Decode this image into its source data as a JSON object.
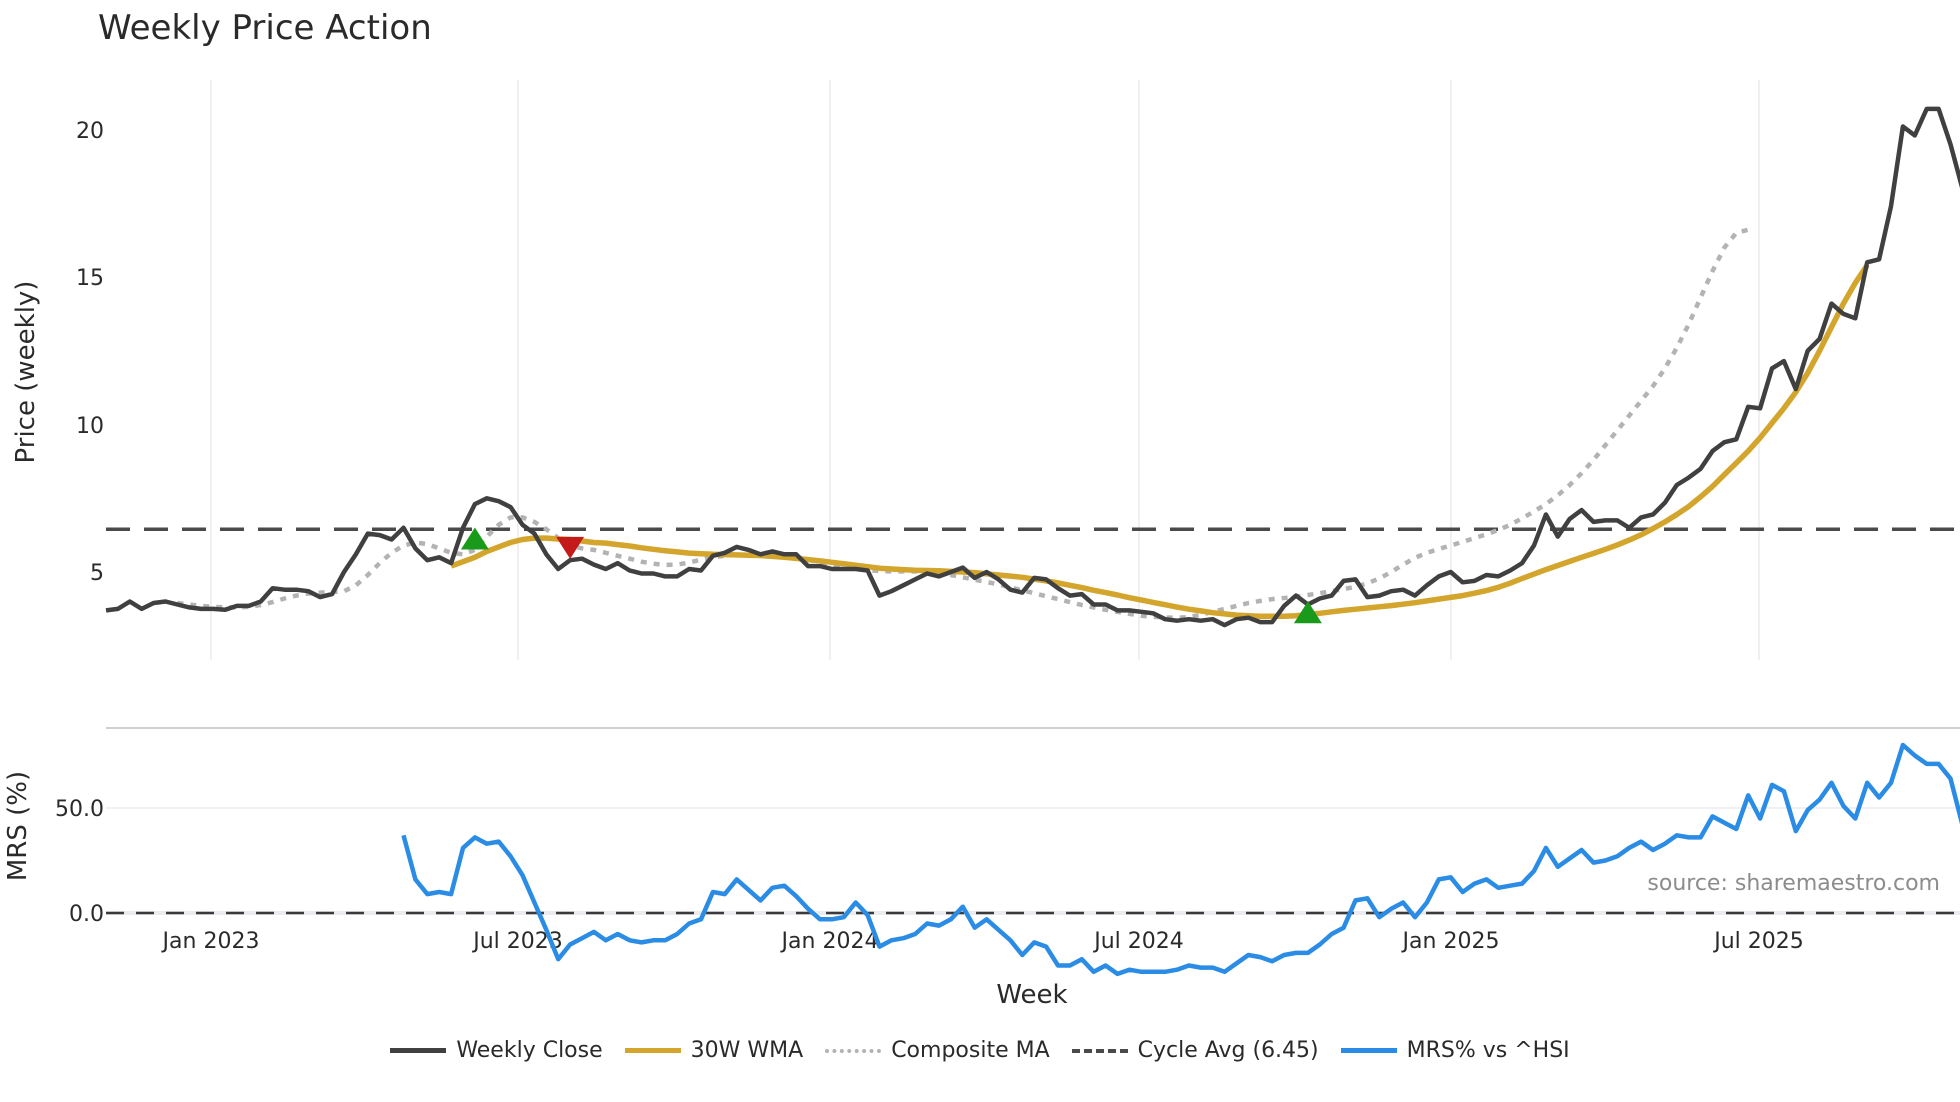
{
  "title": "Weekly Price Action",
  "chart_data": [
    {
      "type": "line",
      "title": "Weekly Price Action",
      "xlabel": "Week",
      "ylabel": "Price (weekly)",
      "ylim": [
        2.0,
        21.5
      ],
      "yticks": [
        5,
        10,
        15,
        20
      ],
      "xticks": [
        "Jan 2023",
        "Jul 2023",
        "Jan 2024",
        "Jul 2024",
        "Jan 2025",
        "Jul 2025"
      ],
      "grid": true,
      "cycle_avg": 6.45,
      "x_start": "2022-10-31",
      "x_step": "1 week",
      "series": [
        {
          "name": "Weekly Close",
          "color": "#404040",
          "style": "solid",
          "values": [
            3.7,
            3.75,
            4.0,
            3.75,
            3.95,
            4.0,
            3.9,
            3.8,
            3.75,
            3.75,
            3.72,
            3.85,
            3.85,
            4.0,
            4.45,
            4.4,
            4.4,
            4.35,
            4.15,
            4.25,
            5.0,
            5.6,
            6.3,
            6.25,
            6.1,
            6.5,
            5.8,
            5.4,
            5.5,
            5.3,
            6.5,
            7.3,
            7.5,
            7.4,
            7.2,
            6.6,
            6.3,
            5.6,
            5.1,
            5.4,
            5.45,
            5.25,
            5.1,
            5.3,
            5.05,
            4.95,
            4.95,
            4.85,
            4.85,
            5.1,
            5.05,
            5.55,
            5.65,
            5.85,
            5.75,
            5.6,
            5.7,
            5.6,
            5.6,
            5.2,
            5.2,
            5.1,
            5.1,
            5.1,
            5.05,
            4.2,
            4.35,
            4.55,
            4.75,
            4.95,
            4.85,
            5.0,
            5.15,
            4.8,
            5.0,
            4.75,
            4.4,
            4.3,
            4.8,
            4.75,
            4.45,
            4.2,
            4.25,
            3.9,
            3.9,
            3.7,
            3.7,
            3.65,
            3.6,
            3.4,
            3.35,
            3.4,
            3.35,
            3.4,
            3.2,
            3.4,
            3.45,
            3.3,
            3.3,
            3.85,
            4.2,
            3.9,
            4.1,
            4.2,
            4.7,
            4.75,
            4.15,
            4.2,
            4.35,
            4.4,
            4.2,
            4.55,
            4.85,
            5.0,
            4.65,
            4.7,
            4.9,
            4.85,
            5.05,
            5.3,
            5.9,
            6.95,
            6.2,
            6.8,
            7.1,
            6.7,
            6.75,
            6.75,
            6.5,
            6.85,
            6.95,
            7.35,
            7.95,
            8.2,
            8.5,
            9.1,
            9.4,
            9.5,
            10.6,
            10.55,
            11.9,
            12.15,
            11.2,
            12.5,
            12.9,
            14.1,
            13.75,
            13.6,
            15.5,
            15.6,
            17.4,
            20.1,
            19.8,
            20.7,
            20.7,
            19.5,
            18.0,
            17.7
          ]
        },
        {
          "name": "30W WMA",
          "color": "#d4a52c",
          "style": "solid",
          "start_index": 29,
          "values": [
            5.2,
            5.35,
            5.5,
            5.7,
            5.85,
            6.0,
            6.1,
            6.15,
            6.15,
            6.12,
            6.1,
            6.05,
            6.0,
            5.98,
            5.93,
            5.88,
            5.82,
            5.77,
            5.72,
            5.68,
            5.64,
            5.62,
            5.6,
            5.59,
            5.58,
            5.57,
            5.56,
            5.53,
            5.5,
            5.46,
            5.42,
            5.38,
            5.33,
            5.28,
            5.23,
            5.18,
            5.13,
            5.1,
            5.08,
            5.06,
            5.05,
            5.04,
            5.02,
            5.0,
            4.98,
            4.94,
            4.9,
            4.86,
            4.82,
            4.76,
            4.7,
            4.63,
            4.55,
            4.47,
            4.38,
            4.3,
            4.22,
            4.13,
            4.05,
            3.97,
            3.89,
            3.81,
            3.74,
            3.68,
            3.62,
            3.58,
            3.54,
            3.52,
            3.5,
            3.5,
            3.5,
            3.52,
            3.56,
            3.6,
            3.65,
            3.7,
            3.74,
            3.78,
            3.82,
            3.86,
            3.91,
            3.96,
            4.02,
            4.08,
            4.14,
            4.2,
            4.28,
            4.37,
            4.48,
            4.62,
            4.78,
            4.93,
            5.08,
            5.22,
            5.36,
            5.5,
            5.63,
            5.77,
            5.92,
            6.08,
            6.26,
            6.47,
            6.7,
            6.95,
            7.22,
            7.55,
            7.9,
            8.3,
            8.7,
            9.1,
            9.55,
            10.05,
            10.55,
            11.1,
            11.75,
            12.5,
            13.3,
            14.1,
            14.8,
            15.4
          ]
        },
        {
          "name": "Composite MA",
          "color": "#b3b3b3",
          "style": "dotted",
          "start_index": 6,
          "values": [
            3.95,
            3.9,
            3.85,
            3.82,
            3.8,
            3.8,
            3.82,
            3.88,
            3.98,
            4.1,
            4.2,
            4.27,
            4.3,
            4.32,
            4.35,
            4.55,
            4.9,
            5.3,
            5.65,
            5.9,
            6.0,
            5.95,
            5.8,
            5.65,
            5.6,
            5.75,
            6.2,
            6.6,
            6.85,
            6.85,
            6.7,
            6.45,
            6.15,
            5.9,
            5.8,
            5.75,
            5.65,
            5.55,
            5.45,
            5.35,
            5.28,
            5.24,
            5.25,
            5.32,
            5.42,
            5.5,
            5.55,
            5.58,
            5.58,
            5.57,
            5.55,
            5.52,
            5.47,
            5.41,
            5.35,
            5.25,
            5.15,
            5.1,
            5.06,
            5.03,
            5.02,
            5.02,
            5.02,
            5.0,
            4.96,
            4.9,
            4.82,
            4.74,
            4.66,
            4.58,
            4.48,
            4.38,
            4.28,
            4.18,
            4.08,
            3.98,
            3.88,
            3.8,
            3.72,
            3.65,
            3.58,
            3.52,
            3.48,
            3.46,
            3.45,
            3.47,
            3.55,
            3.65,
            3.75,
            3.85,
            3.95,
            4.02,
            4.08,
            4.12,
            4.17,
            4.22,
            4.28,
            4.35,
            4.42,
            4.5,
            4.62,
            4.78,
            5.0,
            5.25,
            5.48,
            5.65,
            5.78,
            5.9,
            6.02,
            6.15,
            6.28,
            6.42,
            6.6,
            6.82,
            7.05,
            7.3,
            7.6,
            7.95,
            8.35,
            8.8,
            9.3,
            9.8,
            10.3,
            10.8,
            11.3,
            11.9,
            12.6,
            13.4,
            14.3,
            15.2,
            16.0,
            16.5,
            16.6
          ]
        },
        {
          "name": "Cycle Avg (6.45)",
          "color": "#4a4a4a",
          "style": "dashed",
          "value": 6.45
        }
      ],
      "signals": [
        {
          "type": "buy",
          "color": "#1a9a1a",
          "index": 31,
          "price": 6.1
        },
        {
          "type": "sell",
          "color": "#c41a1a",
          "index": 39,
          "price": 5.85
        },
        {
          "type": "buy",
          "color": "#1a9a1a",
          "index": 101,
          "price": 3.6
        }
      ]
    },
    {
      "type": "line",
      "ylabel": "MRS (%)",
      "yticks": [
        "0.0",
        "50.0"
      ],
      "ylim": [
        -35,
        80
      ],
      "series": [
        {
          "name": "MRS% vs ^HSI",
          "color": "#2b8ce6",
          "style": "solid",
          "start_index": 25,
          "values": [
            37,
            16,
            9,
            10,
            9,
            31,
            36,
            33,
            34,
            27,
            18,
            5,
            -8,
            -22,
            -15,
            -12,
            -9,
            -13,
            -10,
            -13,
            -14,
            -13,
            -13,
            -10,
            -5,
            -3,
            10,
            9,
            16,
            11,
            6,
            12,
            13,
            8,
            2,
            -3,
            -3,
            -2,
            5,
            -1,
            -16,
            -13,
            -12,
            -10,
            -5,
            -6,
            -3,
            3,
            -7,
            -3,
            -8,
            -13,
            -20,
            -14,
            -16,
            -25,
            -25,
            -22,
            -28,
            -25,
            -29,
            -27,
            -28,
            -28,
            -28,
            -27,
            -25,
            -26,
            -26,
            -28,
            -24,
            -20,
            -21,
            -23,
            -20,
            -19,
            -19,
            -15,
            -10,
            -7,
            6,
            7,
            -2,
            2,
            5,
            -2,
            5,
            16,
            17,
            10,
            14,
            16,
            12,
            13,
            14,
            20,
            31,
            22,
            26,
            30,
            24,
            25,
            27,
            31,
            34,
            30,
            33,
            37,
            36,
            36,
            46,
            43,
            40,
            56,
            45,
            61,
            58,
            39,
            49,
            54,
            62,
            51,
            45,
            62,
            55,
            62,
            80,
            75,
            71,
            71,
            64,
            42,
            35
          ]
        }
      ]
    }
  ],
  "axes": {
    "price": {
      "label": "Price (weekly)",
      "ticks": [
        "5",
        "10",
        "15",
        "20"
      ]
    },
    "mrs": {
      "label": "MRS (%)",
      "ticks": [
        "0.0",
        "50.0"
      ]
    },
    "x": {
      "label": "Week",
      "ticks": [
        "Jan 2023",
        "Jul 2023",
        "Jan 2024",
        "Jul 2024",
        "Jan 2025",
        "Jul 2025"
      ]
    }
  },
  "source": "source: sharemaestro.com",
  "legend": [
    {
      "label": "Weekly Close",
      "color": "#404040",
      "style": "solid"
    },
    {
      "label": "30W WMA",
      "color": "#d4a52c",
      "style": "solid"
    },
    {
      "label": "Composite MA",
      "color": "#b3b3b3",
      "style": "dotted"
    },
    {
      "label": "Cycle Avg (6.45)",
      "color": "#4a4a4a",
      "style": "dashed"
    },
    {
      "label": "MRS% vs ^HSI",
      "color": "#2b8ce6",
      "style": "solid"
    }
  ]
}
